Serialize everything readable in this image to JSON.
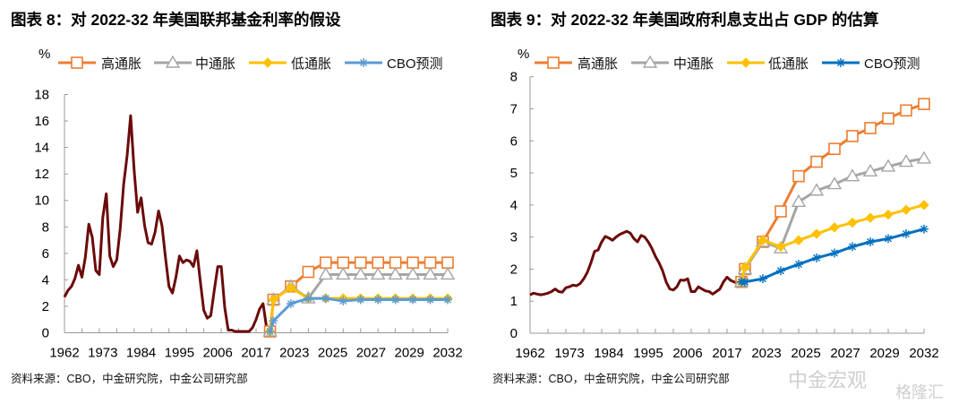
{
  "charts": [
    {
      "title": "图表 8：对 2022-32 年美国联邦基金利率的假设",
      "source": "资料来源：CBO，中金研究院，中金公司研究部",
      "chart_data": {
        "type": "line",
        "ylabel": "%",
        "ylim": [
          0,
          18
        ],
        "yticks": [
          0,
          2,
          4,
          6,
          8,
          10,
          12,
          14,
          16,
          18
        ],
        "xtick_labels": [
          "1962",
          "1973",
          "1984",
          "1995",
          "2006",
          "2017",
          "2023",
          "2025",
          "2027",
          "2029",
          "2032"
        ],
        "legend_position": "top",
        "history": {
          "color": "#6B0A0A",
          "start_year": 1962,
          "values": [
            2.7,
            3.2,
            3.5,
            4.1,
            5.1,
            4.2,
            5.7,
            8.2,
            7.2,
            4.7,
            4.4,
            8.7,
            10.5,
            5.8,
            5.0,
            5.5,
            7.9,
            11.2,
            13.4,
            16.4,
            12.3,
            9.1,
            10.2,
            8.1,
            6.8,
            6.7,
            7.6,
            9.2,
            8.1,
            5.7,
            3.5,
            3.0,
            4.2,
            5.8,
            5.3,
            5.5,
            5.4,
            5.0,
            6.2,
            3.9,
            1.7,
            1.1,
            1.3,
            3.2,
            5.0,
            5.0,
            1.9,
            0.2,
            0.2,
            0.1,
            0.1,
            0.1,
            0.1,
            0.1,
            0.4,
            1.0,
            1.8,
            2.2,
            0.4,
            0.1
          ]
        },
        "forecast_years": [
          2021,
          2022,
          2023,
          2024,
          2025,
          2026,
          2027,
          2028,
          2029,
          2030,
          2031,
          2032
        ],
        "series": [
          {
            "name": "高通胀",
            "color": "#ED7D31",
            "marker": "square",
            "values": [
              0.1,
              2.5,
              3.5,
              4.6,
              5.3,
              5.3,
              5.3,
              5.3,
              5.3,
              5.3,
              5.3,
              5.3
            ]
          },
          {
            "name": "中通胀",
            "color": "#A5A5A5",
            "marker": "triangle",
            "values": [
              0.1,
              2.5,
              3.5,
              2.6,
              4.4,
              4.4,
              4.4,
              4.4,
              4.4,
              4.4,
              4.4,
              4.4
            ]
          },
          {
            "name": "低通胀",
            "color": "#FFC000",
            "marker": "diamond",
            "values": [
              0.1,
              2.5,
              3.4,
              2.6,
              2.6,
              2.6,
              2.6,
              2.6,
              2.6,
              2.6,
              2.6,
              2.6
            ]
          },
          {
            "name": "CBO预测",
            "color": "#5B9BD5",
            "marker": "asterisk",
            "values": [
              0.1,
              0.9,
              2.2,
              2.6,
              2.6,
              2.4,
              2.5,
              2.5,
              2.5,
              2.5,
              2.5,
              2.5
            ]
          }
        ]
      }
    },
    {
      "title": "图表 9：对 2022-32 年美国政府利息支出占 GDP 的估算",
      "source": "资料来源：CBO，中金研究院，中金公司研究部",
      "chart_data": {
        "type": "line",
        "ylabel": "%",
        "ylim": [
          0,
          8
        ],
        "yticks": [
          0,
          1,
          2,
          3,
          4,
          5,
          6,
          7,
          8
        ],
        "xtick_labels": [
          "1962",
          "1973",
          "1984",
          "1995",
          "2006",
          "2017",
          "2023",
          "2025",
          "2027",
          "2029",
          "2032"
        ],
        "legend_position": "top",
        "history": {
          "color": "#6B0A0A",
          "start_year": 1962,
          "values": [
            1.2,
            1.25,
            1.22,
            1.2,
            1.22,
            1.25,
            1.3,
            1.38,
            1.3,
            1.28,
            1.42,
            1.45,
            1.5,
            1.48,
            1.55,
            1.7,
            1.9,
            2.2,
            2.55,
            2.6,
            2.85,
            3.02,
            2.97,
            2.9,
            3.0,
            3.08,
            3.13,
            3.18,
            3.12,
            2.95,
            2.85,
            3.05,
            3.0,
            2.85,
            2.65,
            2.4,
            2.2,
            1.95,
            1.6,
            1.38,
            1.35,
            1.45,
            1.66,
            1.65,
            1.7,
            1.3,
            1.3,
            1.45,
            1.38,
            1.32,
            1.3,
            1.22,
            1.3,
            1.38,
            1.6,
            1.75,
            1.65,
            1.6,
            1.55,
            1.6
          ]
        },
        "forecast_years": [
          2021,
          2022,
          2023,
          2024,
          2025,
          2026,
          2027,
          2028,
          2029,
          2030,
          2031,
          2032
        ],
        "series": [
          {
            "name": "高通胀",
            "color": "#ED7D31",
            "marker": "square",
            "values": [
              1.6,
              2.0,
              2.85,
              3.8,
              4.9,
              5.35,
              5.75,
              6.15,
              6.4,
              6.7,
              6.95,
              7.15
            ]
          },
          {
            "name": "中通胀",
            "color": "#A5A5A5",
            "marker": "triangle",
            "values": [
              1.6,
              2.0,
              2.85,
              2.65,
              4.1,
              4.45,
              4.65,
              4.9,
              5.05,
              5.2,
              5.35,
              5.45
            ]
          },
          {
            "name": "低通胀",
            "color": "#FFC000",
            "marker": "diamond",
            "values": [
              1.6,
              2.05,
              2.9,
              2.7,
              2.9,
              3.1,
              3.3,
              3.45,
              3.6,
              3.7,
              3.85,
              4.0
            ]
          },
          {
            "name": "CBO预测",
            "color": "#0070C0",
            "marker": "asterisk",
            "values": [
              1.6,
              1.6,
              1.7,
              1.95,
              2.15,
              2.35,
              2.5,
              2.7,
              2.85,
              2.95,
              3.1,
              3.25
            ]
          }
        ]
      }
    }
  ],
  "watermarks": {
    "wechat": "中金宏观",
    "site": "格隆汇"
  }
}
